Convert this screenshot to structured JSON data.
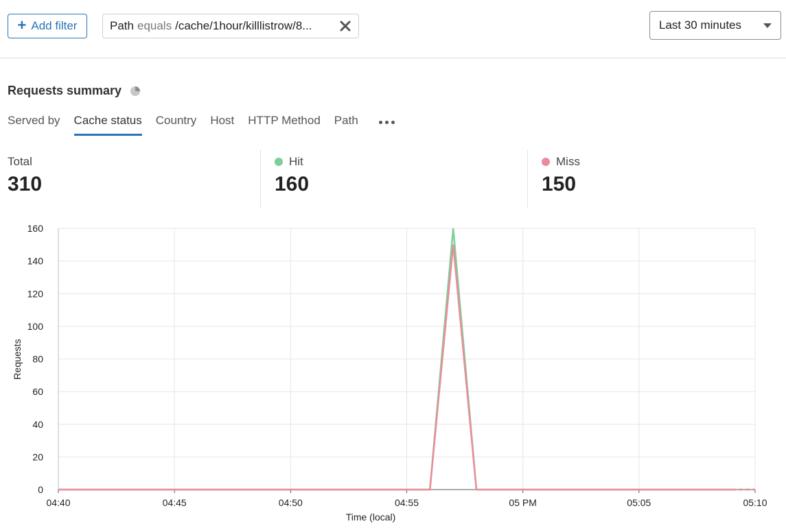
{
  "toolbar": {
    "add_filter_label": "Add filter",
    "filter": {
      "key": "Path",
      "operator": "equals",
      "value": "/cache/1hour/killlistrow/8..."
    },
    "time_range": "Last 30 minutes"
  },
  "summary": {
    "title": "Requests summary",
    "tabs": [
      "Served by",
      "Cache status",
      "Country",
      "Host",
      "HTTP Method",
      "Path"
    ],
    "active_tab": "Cache status",
    "stats": [
      {
        "label": "Total",
        "value": "310"
      },
      {
        "label": "Hit",
        "value": "160",
        "color": "#7ccf98"
      },
      {
        "label": "Miss",
        "value": "150",
        "color": "#ec8c99"
      }
    ]
  },
  "colors": {
    "accent": "#2a73b5",
    "hit": "#7ccf98",
    "miss": "#ec8c99"
  },
  "chart_data": {
    "type": "line",
    "ylabel": "Requests",
    "xlabel": "Time (local)",
    "ylim": [
      0,
      160
    ],
    "yticks": [
      0,
      20,
      40,
      60,
      80,
      100,
      120,
      140,
      160
    ],
    "xticks": [
      "04:40",
      "04:45",
      "04:50",
      "04:55",
      "05 PM",
      "05:05",
      "05:10"
    ],
    "grid": true,
    "x": [
      "04:40",
      "04:56",
      "04:57",
      "04:58",
      "05:09",
      "05:10"
    ],
    "series": [
      {
        "name": "Hit",
        "color": "#7ccf98",
        "values": [
          0,
          0,
          160,
          0,
          0,
          0
        ]
      },
      {
        "name": "Miss",
        "color": "#ec8c99",
        "values": [
          0,
          0,
          150,
          0,
          0,
          0
        ]
      }
    ]
  }
}
